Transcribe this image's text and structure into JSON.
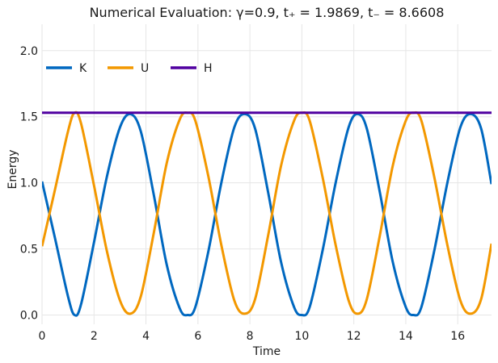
{
  "chart_data": {
    "type": "line",
    "title": "Numerical Evaluation: γ=0.9, t₊ = 1.9869, t₋ = 8.6608",
    "xlabel": "Time",
    "ylabel": "Energy",
    "xlim": [
      0,
      17.3
    ],
    "ylim": [
      -0.07,
      2.2
    ],
    "xticks": [
      0,
      2,
      4,
      6,
      8,
      10,
      12,
      14,
      16
    ],
    "yticks": [
      0.0,
      0.5,
      1.0,
      1.5,
      2.0
    ],
    "xtick_labels": [
      "0",
      "2",
      "4",
      "6",
      "8",
      "10",
      "12",
      "14",
      "16"
    ],
    "ytick_labels": [
      "0.0",
      "0.5",
      "1.0",
      "1.5",
      "2.0"
    ],
    "grid": true,
    "legend_position": "upper-left",
    "series": [
      {
        "name": "K",
        "color": "#0068c0",
        "x": [
          0,
          0.5,
          1.0,
          1.25,
          1.5,
          2.0,
          2.5,
          3.0,
          3.4,
          3.8,
          4.3,
          4.8,
          5.3,
          5.6,
          5.9,
          6.4,
          6.9,
          7.4,
          7.8,
          8.2,
          8.7,
          9.2,
          9.7,
          10.0,
          10.3,
          10.8,
          11.3,
          11.8,
          12.15,
          12.5,
          13.0,
          13.5,
          14.0,
          14.3,
          14.6,
          15.1,
          15.6,
          16.1,
          16.5,
          16.9,
          17.3
        ],
        "y": [
          1.01,
          0.58,
          0.14,
          0.0,
          0.08,
          0.55,
          1.05,
          1.42,
          1.52,
          1.39,
          0.91,
          0.38,
          0.05,
          0.0,
          0.06,
          0.48,
          1.0,
          1.42,
          1.52,
          1.41,
          0.93,
          0.4,
          0.06,
          0.0,
          0.06,
          0.49,
          1.0,
          1.42,
          1.52,
          1.41,
          0.93,
          0.4,
          0.06,
          0.0,
          0.06,
          0.49,
          1.0,
          1.42,
          1.52,
          1.41,
          0.99
        ]
      },
      {
        "name": "U",
        "color": "#f39800",
        "x": [
          0,
          0.5,
          1.0,
          1.25,
          1.5,
          2.0,
          2.5,
          3.0,
          3.4,
          3.8,
          4.3,
          4.8,
          5.3,
          5.6,
          5.9,
          6.4,
          6.9,
          7.4,
          7.8,
          8.2,
          8.7,
          9.2,
          9.7,
          10.0,
          10.3,
          10.8,
          11.3,
          11.8,
          12.15,
          12.5,
          13.0,
          13.5,
          14.0,
          14.3,
          14.6,
          15.1,
          15.6,
          16.1,
          16.5,
          16.9,
          17.3
        ],
        "y": [
          0.52,
          0.95,
          1.39,
          1.53,
          1.45,
          0.98,
          0.48,
          0.11,
          0.01,
          0.14,
          0.62,
          1.15,
          1.48,
          1.53,
          1.47,
          1.05,
          0.53,
          0.11,
          0.01,
          0.12,
          0.6,
          1.13,
          1.47,
          1.53,
          1.47,
          1.04,
          0.53,
          0.11,
          0.01,
          0.12,
          0.6,
          1.13,
          1.47,
          1.53,
          1.47,
          1.04,
          0.53,
          0.11,
          0.01,
          0.12,
          0.54
        ]
      },
      {
        "name": "H",
        "color": "#5000a0",
        "x": [
          0,
          17.3
        ],
        "y": [
          1.53,
          1.53
        ]
      }
    ]
  }
}
